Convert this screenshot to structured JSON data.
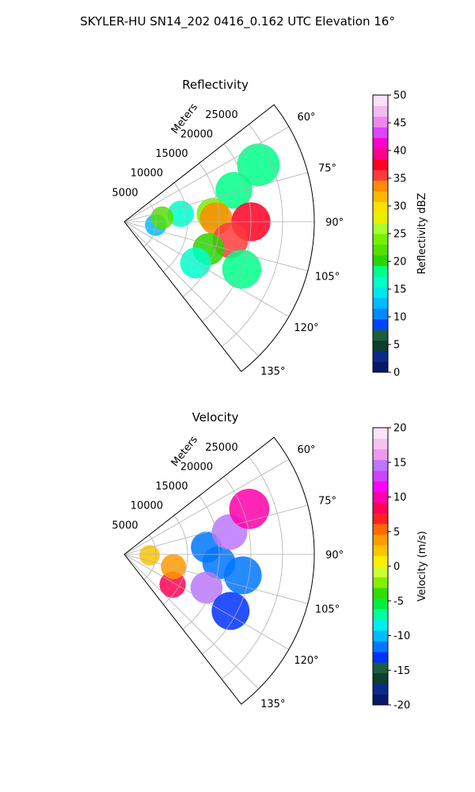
{
  "figure_title": "SKYLER-HU  SN14_202  0416_0.162 UTC Elevation 16°",
  "colors": {
    "reflectivity_scale": [
      "#061a66",
      "#0b2a8a",
      "#0f3d2e",
      "#1d5c3f",
      "#0044ff",
      "#0088ff",
      "#00bbff",
      "#00e5ee",
      "#00ffcc",
      "#00ff88",
      "#2bd400",
      "#55e000",
      "#77f000",
      "#a8ff33",
      "#e8f000",
      "#ffe000",
      "#ffb800",
      "#ff8c00",
      "#ff3c3c",
      "#ff0022",
      "#ff0088",
      "#ff00cc",
      "#dd44ff",
      "#ee88ee",
      "#f4bbf0",
      "#fbe0f8"
    ],
    "velocity_scale": [
      "#061a66",
      "#0b2a8a",
      "#0f3d2e",
      "#1d5c3f",
      "#0033ff",
      "#0077ff",
      "#00bbff",
      "#00eeee",
      "#00ff99",
      "#00ee44",
      "#33dd00",
      "#88ee00",
      "#ccff33",
      "#ffee00",
      "#ffc400",
      "#ff9a00",
      "#ff6a00",
      "#ff2222",
      "#ff0055",
      "#ff00aa",
      "#ff00ff",
      "#cc44ff",
      "#bb77ff",
      "#ee99ee",
      "#f4c4f0",
      "#fbe4f8"
    ]
  },
  "chart_data": [
    {
      "type": "heatmap",
      "subtype": "polar-sector",
      "title": "Reflectivity",
      "radial_label": "Meters",
      "radial_ticks": [
        "5000",
        "10000",
        "15000",
        "20000",
        "25000"
      ],
      "rlim": [
        0,
        30000
      ],
      "angle_ticks": [
        "60°",
        "75°",
        "90°",
        "105°",
        "120°",
        "135°"
      ],
      "theta_range_deg": [
        52,
        142
      ],
      "grid": true,
      "colorbar": {
        "label": "Reflectivity dBZ",
        "ticks": [
          "0",
          "5",
          "10",
          "15",
          "20",
          "25",
          "30",
          "35",
          "40",
          "45",
          "50"
        ],
        "range": [
          0,
          50
        ]
      },
      "echoes": [
        {
          "az": 82,
          "r": 9000,
          "value": 17
        },
        {
          "az": 74,
          "r": 18000,
          "value": 19
        },
        {
          "az": 67,
          "r": 23000,
          "value": 18
        },
        {
          "az": 85,
          "r": 14000,
          "value": 24
        },
        {
          "az": 88,
          "r": 14500,
          "value": 34
        },
        {
          "az": 90,
          "r": 20000,
          "value": 38
        },
        {
          "az": 100,
          "r": 17000,
          "value": 36
        },
        {
          "az": 108,
          "r": 14000,
          "value": 20
        },
        {
          "az": 112,
          "r": 20000,
          "value": 18
        },
        {
          "az": 120,
          "r": 13000,
          "value": 16
        },
        {
          "az": 96,
          "r": 5000,
          "value": 12
        },
        {
          "az": 84,
          "r": 6000,
          "value": 22
        }
      ]
    },
    {
      "type": "heatmap",
      "subtype": "polar-sector",
      "title": "Velocity",
      "radial_label": "Meters",
      "radial_ticks": [
        "5000",
        "10000",
        "15000",
        "20000",
        "25000"
      ],
      "rlim": [
        0,
        30000
      ],
      "angle_ticks": [
        "60°",
        "75°",
        "90°",
        "105°",
        "120°",
        "135°"
      ],
      "theta_range_deg": [
        52,
        142
      ],
      "grid": true,
      "colorbar": {
        "label": "Velocity (m/s)",
        "ticks": [
          "-20",
          "-15",
          "-10",
          "-5",
          "0",
          "5",
          "10",
          "15",
          "20"
        ],
        "range": [
          -20,
          20
        ]
      },
      "echoes": [
        {
          "az": 95,
          "r": 15000,
          "value": -12
        },
        {
          "az": 85,
          "r": 13000,
          "value": -11
        },
        {
          "az": 100,
          "r": 19000,
          "value": -11
        },
        {
          "az": 78,
          "r": 17000,
          "value": 14
        },
        {
          "az": 70,
          "r": 21000,
          "value": 10
        },
        {
          "az": 112,
          "r": 14000,
          "value": 14
        },
        {
          "az": 122,
          "r": 9000,
          "value": 9
        },
        {
          "az": 92,
          "r": 4000,
          "value": 2
        },
        {
          "az": 104,
          "r": 8000,
          "value": 4
        },
        {
          "az": 118,
          "r": 19000,
          "value": -13
        }
      ]
    }
  ]
}
